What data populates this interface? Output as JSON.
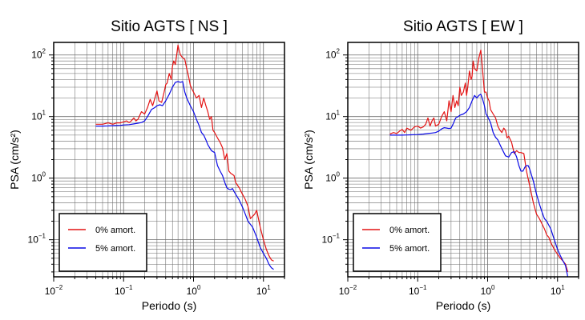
{
  "series_colors": {
    "undamped": "#e41414",
    "damped": "#0a0ae6"
  },
  "chart_data": [
    {
      "type": "line",
      "title": "Sitio AGTS [ NS ]",
      "xlabel": "Periodo (s)",
      "ylabel": "PSA (cm/s²)",
      "xscale": "log",
      "yscale": "log",
      "xlim": [
        0.01,
        20
      ],
      "ylim": [
        0.025,
        160
      ],
      "grid": true,
      "legend_position": "bottom-left",
      "x_ticks": [
        {
          "v": 0.01,
          "base": "10",
          "exp": "−2"
        },
        {
          "v": 0.1,
          "base": "10",
          "exp": "−1"
        },
        {
          "v": 1,
          "base": "10",
          "exp": "0"
        },
        {
          "v": 10,
          "base": "10",
          "exp": "1"
        }
      ],
      "y_ticks": [
        {
          "v": 0.1,
          "base": "10",
          "exp": "−1"
        },
        {
          "v": 1,
          "base": "10",
          "exp": "0"
        },
        {
          "v": 10,
          "base": "10",
          "exp": "1"
        },
        {
          "v": 100,
          "base": "10",
          "exp": "2"
        }
      ],
      "series": [
        {
          "name": "0% amort.",
          "key": "undamped",
          "x": [
            0.04,
            0.05,
            0.06,
            0.07,
            0.08,
            0.09,
            0.1,
            0.11,
            0.12,
            0.13,
            0.14,
            0.15,
            0.16,
            0.18,
            0.2,
            0.22,
            0.24,
            0.26,
            0.28,
            0.3,
            0.32,
            0.35,
            0.38,
            0.4,
            0.42,
            0.45,
            0.48,
            0.5,
            0.52,
            0.55,
            0.58,
            0.6,
            0.62,
            0.65,
            0.7,
            0.75,
            0.8,
            0.85,
            0.9,
            0.95,
            1.0,
            1.1,
            1.2,
            1.3,
            1.4,
            1.5,
            1.6,
            1.7,
            1.8,
            1.9,
            2.0,
            2.2,
            2.4,
            2.6,
            2.8,
            3.0,
            3.2,
            3.4,
            3.6,
            3.8,
            4.0,
            4.5,
            5.0,
            5.5,
            6.0,
            6.5,
            7.0,
            7.5,
            8.0,
            9.0,
            10.0,
            11.0,
            12.0,
            13.0,
            14.0
          ],
          "y": [
            7.5,
            7.5,
            7.9,
            7.5,
            7.9,
            7.9,
            8.2,
            8.5,
            8.0,
            8.6,
            9.5,
            8.5,
            9.0,
            12,
            11,
            14,
            19,
            15,
            20,
            26,
            18,
            17,
            25,
            33,
            35,
            50,
            40,
            65,
            80,
            70,
            110,
            145,
            120,
            100,
            90,
            85,
            60,
            45,
            32,
            28,
            25,
            20,
            22,
            14,
            20,
            15,
            12,
            9,
            10,
            6,
            5.5,
            4.5,
            3.8,
            3.1,
            2.0,
            2.5,
            1.3,
            1.2,
            1.15,
            1.1,
            0.85,
            0.7,
            0.55,
            0.45,
            0.35,
            0.22,
            0.24,
            0.26,
            0.3,
            0.16,
            0.1,
            0.07,
            0.055,
            0.047,
            0.045
          ]
        },
        {
          "name": "5% amort.",
          "key": "damped",
          "x": [
            0.04,
            0.05,
            0.06,
            0.07,
            0.08,
            0.09,
            0.1,
            0.12,
            0.14,
            0.16,
            0.18,
            0.2,
            0.22,
            0.25,
            0.28,
            0.3,
            0.33,
            0.36,
            0.4,
            0.45,
            0.5,
            0.55,
            0.6,
            0.65,
            0.7,
            0.75,
            0.8,
            0.9,
            1.0,
            1.1,
            1.2,
            1.3,
            1.4,
            1.5,
            1.6,
            1.8,
            2.0,
            2.2,
            2.4,
            2.6,
            2.8,
            3.0,
            3.2,
            3.4,
            3.6,
            4.0,
            4.5,
            5.0,
            5.5,
            6.0,
            7.0,
            8.0,
            9.0,
            10.0,
            11.0,
            12.0,
            13.0,
            14.0
          ],
          "y": [
            7.0,
            7.0,
            7.05,
            7.1,
            7.15,
            7.2,
            7.3,
            7.4,
            7.6,
            7.8,
            8.0,
            8.5,
            10,
            13,
            14,
            15,
            15.5,
            15,
            18,
            23,
            30,
            36,
            37,
            36,
            37,
            25,
            20,
            15,
            12,
            9,
            7.2,
            5.5,
            5.0,
            4.2,
            3.5,
            2.8,
            2.6,
            1.6,
            1.3,
            1.1,
            0.85,
            0.7,
            0.66,
            0.65,
            0.68,
            0.55,
            0.44,
            0.34,
            0.26,
            0.2,
            0.16,
            0.11,
            0.075,
            0.06,
            0.05,
            0.04,
            0.035,
            0.033
          ]
        }
      ]
    },
    {
      "type": "line",
      "title": "Sitio AGTS [ EW ]",
      "xlabel": "Periodo (s)",
      "ylabel": "PSA (cm/s²)",
      "xscale": "log",
      "yscale": "log",
      "xlim": [
        0.01,
        20
      ],
      "ylim": [
        0.025,
        160
      ],
      "grid": true,
      "legend_position": "bottom-left",
      "x_ticks": [
        {
          "v": 0.01,
          "base": "10",
          "exp": "−2"
        },
        {
          "v": 0.1,
          "base": "10",
          "exp": "−1"
        },
        {
          "v": 1,
          "base": "10",
          "exp": "0"
        },
        {
          "v": 10,
          "base": "10",
          "exp": "1"
        }
      ],
      "y_ticks": [
        {
          "v": 0.1,
          "base": "10",
          "exp": "−1"
        },
        {
          "v": 1,
          "base": "10",
          "exp": "0"
        },
        {
          "v": 10,
          "base": "10",
          "exp": "1"
        },
        {
          "v": 100,
          "base": "10",
          "exp": "2"
        }
      ],
      "series": [
        {
          "name": "0% amort.",
          "key": "undamped",
          "x": [
            0.04,
            0.045,
            0.05,
            0.055,
            0.06,
            0.065,
            0.07,
            0.08,
            0.09,
            0.1,
            0.11,
            0.12,
            0.13,
            0.14,
            0.15,
            0.16,
            0.17,
            0.18,
            0.2,
            0.22,
            0.24,
            0.26,
            0.28,
            0.3,
            0.32,
            0.34,
            0.36,
            0.38,
            0.4,
            0.42,
            0.45,
            0.48,
            0.5,
            0.52,
            0.55,
            0.58,
            0.6,
            0.62,
            0.65,
            0.7,
            0.75,
            0.8,
            0.85,
            0.9,
            0.95,
            1.0,
            1.05,
            1.1,
            1.2,
            1.3,
            1.4,
            1.5,
            1.6,
            1.7,
            1.8,
            1.9,
            2.0,
            2.2,
            2.4,
            2.6,
            2.8,
            3.0,
            3.3,
            3.6,
            4.0,
            4.5,
            5.0,
            5.5,
            6.0,
            6.5,
            7.0,
            7.5,
            8.0,
            9.0,
            10.0,
            11.0,
            12.0,
            13.0,
            14.0
          ],
          "y": [
            5.2,
            5.5,
            5.3,
            5.8,
            6.2,
            5.5,
            6.5,
            6.0,
            6.8,
            7.0,
            6.5,
            6.8,
            7.5,
            9.5,
            7.0,
            8.5,
            9.5,
            7.0,
            7.5,
            10,
            12,
            8.5,
            18,
            12,
            22,
            14,
            18,
            15,
            30,
            22,
            25,
            35,
            22,
            30,
            55,
            40,
            45,
            80,
            60,
            55,
            90,
            120,
            55,
            25,
            25,
            20,
            18,
            13,
            11,
            9.5,
            7,
            6,
            5.5,
            6.5,
            6.0,
            4.5,
            4.8,
            3.8,
            2.5,
            2.8,
            2.6,
            2.6,
            2.5,
            1.3,
            0.75,
            0.4,
            0.26,
            0.22,
            0.18,
            0.15,
            0.12,
            0.11,
            0.09,
            0.07,
            0.058,
            0.05,
            0.045,
            0.04,
            0.03
          ]
        },
        {
          "name": "5% amort.",
          "key": "damped",
          "x": [
            0.04,
            0.05,
            0.06,
            0.07,
            0.08,
            0.09,
            0.1,
            0.12,
            0.14,
            0.16,
            0.18,
            0.2,
            0.22,
            0.24,
            0.26,
            0.28,
            0.3,
            0.32,
            0.35,
            0.38,
            0.4,
            0.45,
            0.5,
            0.55,
            0.6,
            0.65,
            0.7,
            0.75,
            0.8,
            0.85,
            0.9,
            0.95,
            1.0,
            1.1,
            1.2,
            1.3,
            1.4,
            1.5,
            1.6,
            1.8,
            2.0,
            2.2,
            2.4,
            2.6,
            2.8,
            3.0,
            3.2,
            3.4,
            3.6,
            3.8,
            4.0,
            4.5,
            5.0,
            5.5,
            6.0,
            6.5,
            7.0,
            8.0,
            9.0,
            10.0,
            11.0,
            12.0,
            13.0,
            14.0
          ],
          "y": [
            5.0,
            5.0,
            5.0,
            5.02,
            5.05,
            5.08,
            5.1,
            5.2,
            5.3,
            5.4,
            5.5,
            5.8,
            6.3,
            6.6,
            6.5,
            6.4,
            6.5,
            7.5,
            9.5,
            10,
            10.5,
            11,
            12,
            14,
            18,
            22,
            20,
            22,
            23,
            19,
            15,
            11,
            10,
            8,
            5.5,
            4.6,
            4.2,
            3.5,
            3.0,
            2.3,
            2.2,
            2.6,
            2.7,
            2.2,
            1.6,
            1.3,
            1.3,
            1.5,
            1.6,
            1.6,
            1.4,
            0.9,
            0.55,
            0.38,
            0.28,
            0.22,
            0.2,
            0.15,
            0.1,
            0.07,
            0.055,
            0.045,
            0.038,
            0.025
          ]
        }
      ]
    }
  ]
}
